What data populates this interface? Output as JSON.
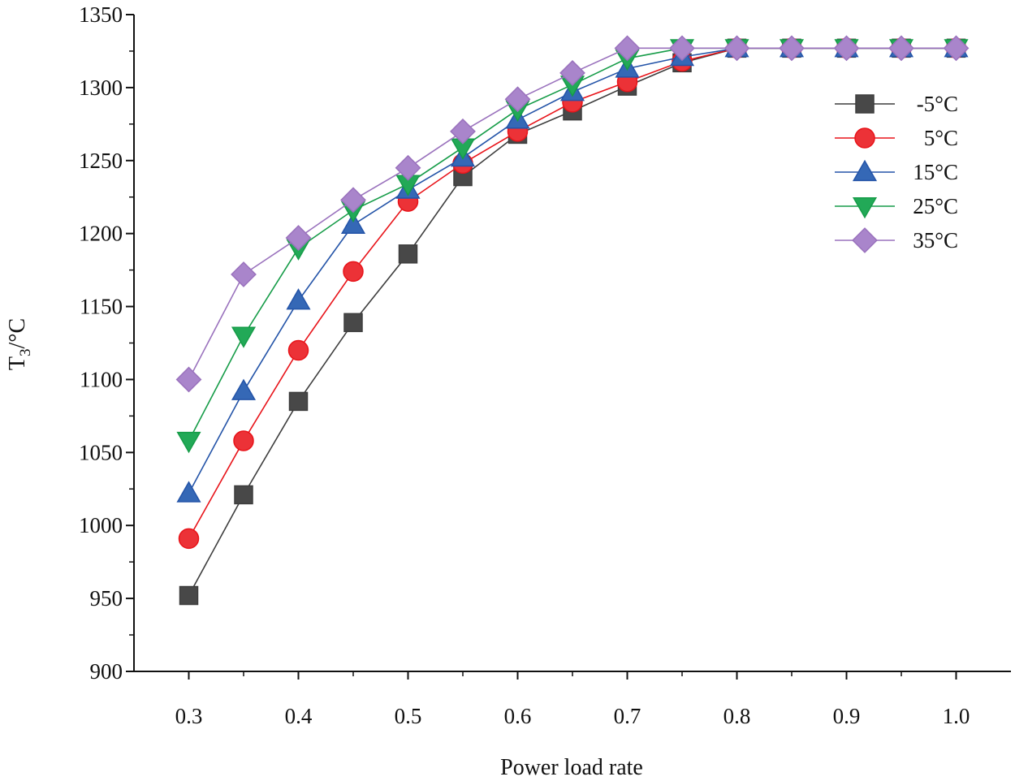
{
  "chart_data": {
    "type": "line",
    "title": "",
    "xlabel": "Power load rate",
    "ylabel_main": "T",
    "ylabel_sub": "3",
    "ylabel_unit": "/°C",
    "xlim": [
      0.25,
      1.05
    ],
    "ylim": [
      900,
      1350
    ],
    "x_ticks": [
      0.3,
      0.4,
      0.5,
      0.6,
      0.7,
      0.8,
      0.9,
      1.0
    ],
    "x_tick_labels": [
      "0.3",
      "0.4",
      "0.5",
      "0.6",
      "0.7",
      "0.8",
      "0.9",
      "1.0"
    ],
    "y_ticks": [
      900,
      950,
      1000,
      1050,
      1100,
      1150,
      1200,
      1250,
      1300,
      1350
    ],
    "y_tick_labels": [
      "900",
      "950",
      "1000",
      "1050",
      "1100",
      "1150",
      "1200",
      "1250",
      "1300",
      "1350"
    ],
    "x": [
      0.3,
      0.35,
      0.4,
      0.45,
      0.5,
      0.55,
      0.6,
      0.65,
      0.7,
      0.75,
      0.8,
      0.85,
      0.9,
      0.95,
      1.0
    ],
    "legend_position": "top-right",
    "series": [
      {
        "name": "-5°C",
        "marker": "square",
        "color": "#3d3d3d",
        "fill": "#484848",
        "values": [
          952,
          1021,
          1085,
          1139,
          1186,
          1239,
          1268,
          1284,
          1301,
          1317,
          1327,
          1327,
          1327,
          1327,
          1327
        ]
      },
      {
        "name": "5°C",
        "marker": "circle",
        "color": "#e8141a",
        "fill": "#ec3237",
        "values": [
          991,
          1058,
          1120,
          1174,
          1222,
          1248,
          1270,
          1290,
          1304,
          1318,
          1327,
          1327,
          1327,
          1327,
          1327
        ]
      },
      {
        "name": "15°C",
        "marker": "triangle-up",
        "color": "#2454a8",
        "fill": "#3568b6",
        "values": [
          1022,
          1092,
          1154,
          1206,
          1230,
          1252,
          1278,
          1297,
          1313,
          1321,
          1327,
          1327,
          1327,
          1327,
          1327
        ]
      },
      {
        "name": "25°C",
        "marker": "triangle-down",
        "color": "#169c48",
        "fill": "#22a957",
        "values": [
          1058,
          1130,
          1190,
          1216,
          1234,
          1259,
          1285,
          1302,
          1320,
          1327,
          1327,
          1327,
          1327,
          1327,
          1327
        ]
      },
      {
        "name": "35°C",
        "marker": "diamond",
        "color": "#9a72bd",
        "fill": "#a985cb",
        "values": [
          1100,
          1172,
          1197,
          1223,
          1245,
          1270,
          1292,
          1310,
          1327,
          1327,
          1327,
          1327,
          1327,
          1327,
          1327
        ]
      }
    ]
  }
}
